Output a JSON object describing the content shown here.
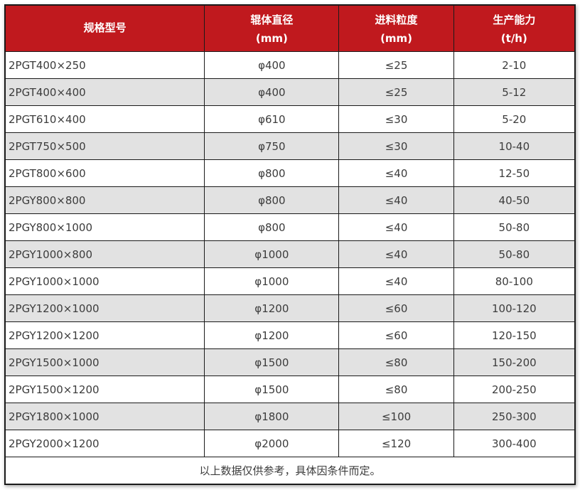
{
  "colors": {
    "header_bg": "#c0191e",
    "header_text": "#ffffff",
    "row_bg": "#ffffff",
    "row_alt_bg": "#e2e2e2",
    "border": "#1a1a1a",
    "text": "#3c3c3c"
  },
  "chart_data": {
    "type": "table",
    "columns": [
      {
        "label": "规格型号",
        "unit": ""
      },
      {
        "label": "辊体直径",
        "unit": "(mm)"
      },
      {
        "label": "进料粒度",
        "unit": "(mm)"
      },
      {
        "label": "生产能力",
        "unit": "(t/h)"
      }
    ],
    "rows": [
      [
        "2PGT400×250",
        "φ400",
        "≤25",
        "2-10"
      ],
      [
        "2PGT400×400",
        "φ400",
        "≤25",
        "5-12"
      ],
      [
        "2PGT610×400",
        "φ610",
        "≤30",
        "5-20"
      ],
      [
        "2PGT750×500",
        "φ750",
        "≤30",
        "10-40"
      ],
      [
        "2PGT800×600",
        "φ800",
        "≤40",
        "12-50"
      ],
      [
        "2PGY800×800",
        "φ800",
        "≤40",
        "40-50"
      ],
      [
        "2PGY800×1000",
        "φ800",
        "≤40",
        "50-80"
      ],
      [
        "2PGY1000×800",
        "φ1000",
        "≤40",
        "50-80"
      ],
      [
        "2PGY1000×1000",
        "φ1000",
        "≤40",
        "80-100"
      ],
      [
        "2PGY1200×1000",
        "φ1200",
        "≤60",
        "100-120"
      ],
      [
        "2PGY1200×1200",
        "φ1200",
        "≤60",
        "120-150"
      ],
      [
        "2PGY1500×1000",
        "φ1500",
        "≤80",
        "150-200"
      ],
      [
        "2PGY1500×1200",
        "φ1500",
        "≤80",
        "200-250"
      ],
      [
        "2PGY1800×1000",
        "φ1800",
        "≤100",
        "250-300"
      ],
      [
        "2PGY2000×1200",
        "φ2000",
        "≤120",
        "300-400"
      ]
    ],
    "footnote": "以上数据仅供参考，具体因条件而定。"
  }
}
